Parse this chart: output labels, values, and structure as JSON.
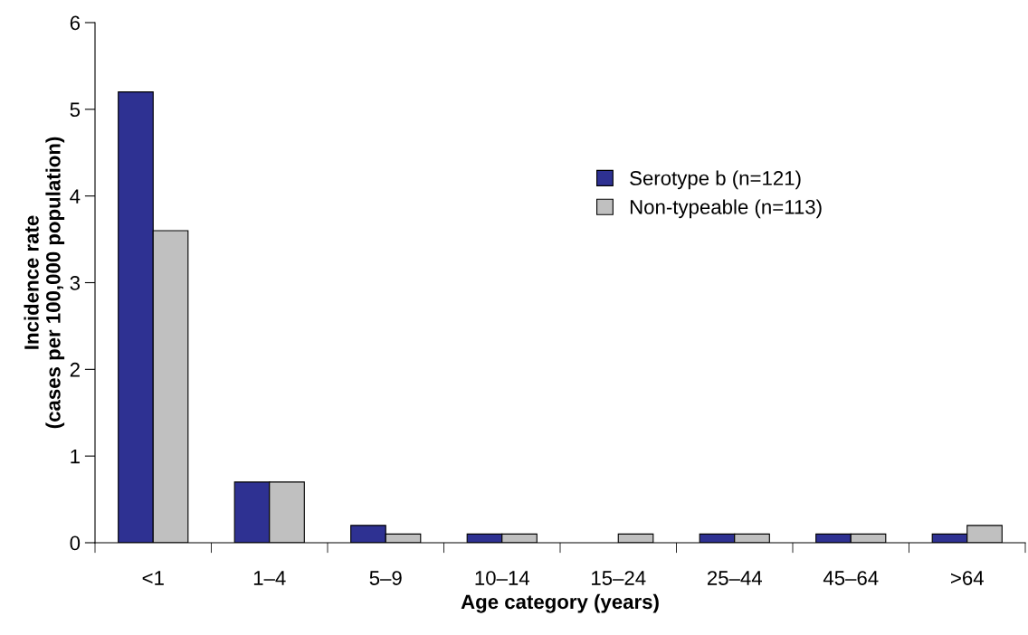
{
  "chart_data": {
    "type": "bar",
    "xlabel": "Age category (years)",
    "ylabel": "Incidence rate\n(cases per 100,000 population)",
    "categories": [
      "<1",
      "1–4",
      "5–9",
      "10–14",
      "15–24",
      "25–44",
      "45–64",
      ">64"
    ],
    "series": [
      {
        "name": "Serotype b (n=121)",
        "color": "#2e3192",
        "values": [
          5.2,
          0.7,
          0.2,
          0.1,
          null,
          0.1,
          0.1,
          0.1
        ]
      },
      {
        "name": "Non-typeable (n=113)",
        "color": "#c0c0c0",
        "values": [
          3.6,
          0.7,
          0.1,
          0.1,
          0.1,
          0.1,
          0.1,
          0.2
        ]
      }
    ],
    "ylim": [
      0,
      6
    ],
    "yticks": [
      0,
      1,
      2,
      3,
      4,
      5,
      6
    ],
    "grid": false,
    "legend": "right"
  }
}
